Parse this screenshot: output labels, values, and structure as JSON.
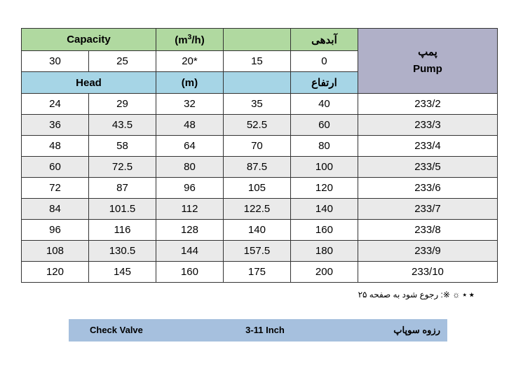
{
  "table": {
    "header1": {
      "capacity": "Capacity",
      "unit": "(m³/h)",
      "capacity_fa": "آبدهی"
    },
    "header2": {
      "cols": [
        "30",
        "25",
        "20*",
        "15",
        "0"
      ]
    },
    "header3": {
      "head": "Head",
      "unit": "(m)",
      "head_fa": "ارتفاع"
    },
    "pump_header": {
      "fa": "پمپ",
      "en": "Pump"
    },
    "rows": [
      {
        "vals": [
          "24",
          "29",
          "32",
          "35",
          "40"
        ],
        "pump": "233/2",
        "alt": false
      },
      {
        "vals": [
          "36",
          "43.5",
          "48",
          "52.5",
          "60"
        ],
        "pump": "233/3",
        "alt": true
      },
      {
        "vals": [
          "48",
          "58",
          "64",
          "70",
          "80"
        ],
        "pump": "233/4",
        "alt": false
      },
      {
        "vals": [
          "60",
          "72.5",
          "80",
          "87.5",
          "100"
        ],
        "pump": "233/5",
        "alt": true
      },
      {
        "vals": [
          "72",
          "87",
          "96",
          "105",
          "120"
        ],
        "pump": "233/6",
        "alt": false
      },
      {
        "vals": [
          "84",
          "101.5",
          "112",
          "122.5",
          "140"
        ],
        "pump": "233/7",
        "alt": true
      },
      {
        "vals": [
          "96",
          "116",
          "128",
          "140",
          "160"
        ],
        "pump": "233/8",
        "alt": false
      },
      {
        "vals": [
          "108",
          "130.5",
          "144",
          "157.5",
          "180"
        ],
        "pump": "233/9",
        "alt": true
      },
      {
        "vals": [
          "120",
          "145",
          "160",
          "175",
          "200"
        ],
        "pump": "233/10",
        "alt": false
      }
    ],
    "col_widths": [
      "82",
      "82",
      "82",
      "82",
      "82",
      "140"
    ],
    "colors": {
      "green": "#b0d9a0",
      "blue": "#a6d5e6",
      "purple": "#b0b0c8",
      "alt_bg": "#eaeaea",
      "border": "#333333"
    }
  },
  "footnote": {
    "text": "٭ ☼ ※: رجوع شود به صفحه ۲۵",
    "prefix": "٭"
  },
  "bottom_bar": {
    "left": "Check Valve",
    "mid": "3-11 Inch",
    "right": "رزوه سوپاپ",
    "bg": "#a6c0de"
  }
}
